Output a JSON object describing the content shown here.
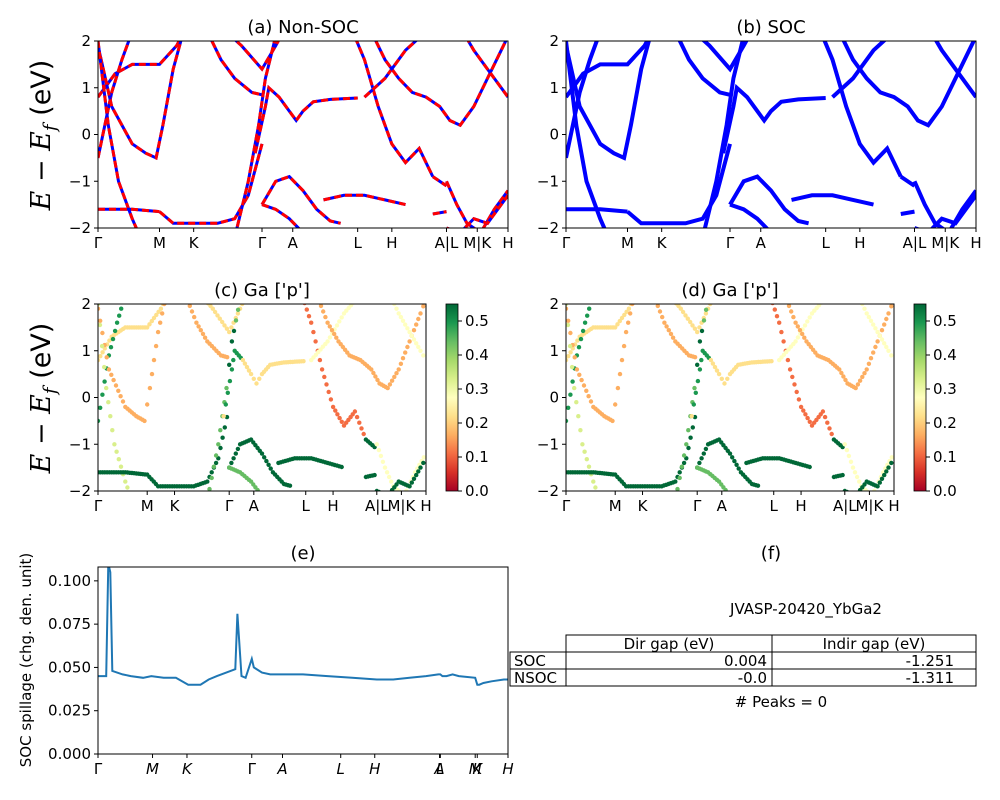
{
  "colors": {
    "nonsoc_red": "#ff0000",
    "nonsoc_blue": "#0000ff",
    "soc_blue": "#0000ff",
    "spillage_line": "#1f77b4",
    "cmap": "RdYlGn"
  },
  "kpath_labels": [
    "Γ",
    "M",
    "K",
    "Γ",
    "A",
    "L",
    "H",
    "A|L",
    "M|K",
    "H"
  ],
  "kpath_labels_e": [
    "Γ",
    "M",
    "K",
    "Γ",
    "A",
    "L",
    "H",
    "A",
    "L",
    "M",
    "K",
    "H"
  ],
  "energy_axis": {
    "ylabel": "E − E_f (eV)",
    "ylim": [
      -2,
      2
    ],
    "ticks": [
      "2",
      "1",
      "0",
      "−1",
      "−2"
    ]
  },
  "colorbar": {
    "range": [
      0.0,
      0.55
    ],
    "ticks": [
      "0.5",
      "0.4",
      "0.3",
      "0.2",
      "0.1",
      "0.0"
    ]
  },
  "panel_f": {
    "title": "(f)",
    "material": "JVASP-20420_YbGa2",
    "table": {
      "headers": [
        "Dir gap (eV)",
        "Indir gap (eV)"
      ],
      "rows": [
        {
          "label": "SOC",
          "dir": "0.004",
          "indir": "-1.251"
        },
        {
          "label": "NSOC",
          "dir": "-0.0",
          "indir": "-1.311"
        }
      ]
    },
    "peaks": "# Peaks = 0"
  },
  "chart_data": [
    {
      "type": "line",
      "title": "(a) Non-SOC",
      "ylabel": "E − E_f (eV)",
      "ylim": [
        -2,
        2
      ],
      "series": [
        {
          "name": "",
          "values": []
        }
      ]
    },
    {
      "type": "line",
      "title": "(b) SOC",
      "ylim": [
        -2,
        2
      ],
      "series": [
        {
          "name": "",
          "values": []
        }
      ]
    },
    {
      "type": "scatter",
      "title": "(c)  Ga ['p']",
      "ylabel": "E − E_f (eV)",
      "ylim": [
        -2,
        2
      ],
      "colorbar": [
        0.0,
        0.55
      ]
    },
    {
      "type": "scatter",
      "title": "(d) Ga ['p']",
      "ylim": [
        -2,
        2
      ],
      "colorbar": [
        0.0,
        0.55
      ]
    },
    {
      "type": "line",
      "title": "(e)",
      "ylabel": "SOC spillage (chg. den. unit)",
      "ylim": [
        0.0,
        0.108
      ],
      "yticks": [
        "0.100",
        "0.075",
        "0.050",
        "0.025",
        "0.000"
      ],
      "x": [
        0,
        0.02,
        0.025,
        0.03,
        0.035,
        0.06,
        0.08,
        0.11,
        0.13,
        0.16,
        0.19,
        0.22,
        0.25,
        0.27,
        0.29,
        0.335,
        0.34,
        0.35,
        0.36,
        0.375,
        0.38,
        0.4,
        0.42,
        0.45,
        0.5,
        0.56,
        0.62,
        0.68,
        0.72,
        0.76,
        0.8,
        0.83,
        0.835,
        0.84,
        0.85,
        0.865,
        0.88,
        0.92,
        0.925,
        0.93,
        0.94,
        0.96,
        0.99,
        1.0
      ],
      "series": [
        {
          "name": "",
          "values": [
            0.045,
            0.045,
            0.11,
            0.105,
            0.048,
            0.046,
            0.045,
            0.044,
            0.045,
            0.044,
            0.044,
            0.04,
            0.04,
            0.043,
            0.045,
            0.049,
            0.081,
            0.045,
            0.044,
            0.055,
            0.05,
            0.047,
            0.046,
            0.046,
            0.046,
            0.045,
            0.044,
            0.043,
            0.043,
            0.044,
            0.045,
            0.046,
            0.046,
            0.045,
            0.045,
            0.046,
            0.045,
            0.044,
            0.04,
            0.04,
            0.041,
            0.042,
            0.043,
            0.043
          ]
        }
      ]
    }
  ]
}
